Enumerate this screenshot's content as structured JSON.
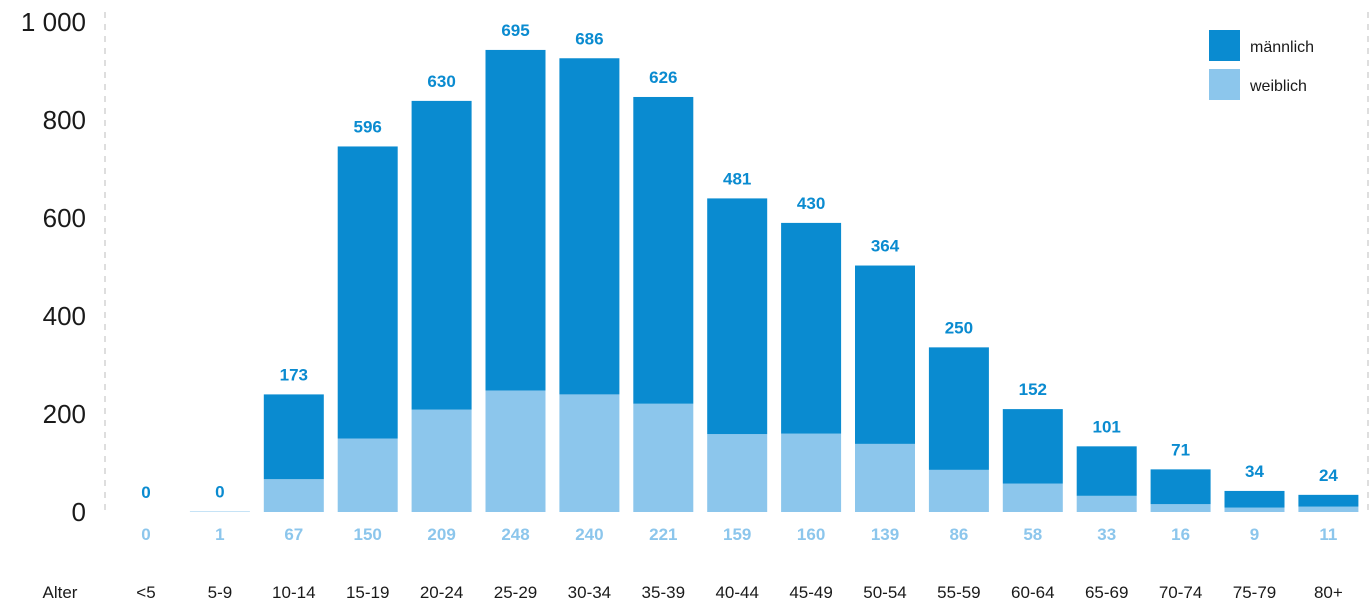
{
  "chart_data": {
    "type": "bar",
    "stacked": true,
    "x_axis_label": "Alter",
    "categories": [
      "<5",
      "5-9",
      "10-14",
      "15-19",
      "20-24",
      "25-29",
      "30-34",
      "35-39",
      "40-44",
      "45-49",
      "50-54",
      "55-59",
      "60-64",
      "65-69",
      "70-74",
      "75-79",
      "80+"
    ],
    "series": [
      {
        "name": "weiblich",
        "color": "#8cc6ec",
        "values": [
          0,
          1,
          67,
          150,
          209,
          248,
          240,
          221,
          159,
          160,
          139,
          86,
          58,
          33,
          16,
          9,
          11
        ]
      },
      {
        "name": "männlich",
        "color": "#0a8bd0",
        "values": [
          0,
          0,
          173,
          596,
          630,
          695,
          686,
          626,
          481,
          430,
          364,
          250,
          152,
          101,
          71,
          34,
          24
        ]
      }
    ],
    "ylim": [
      0,
      1000
    ],
    "yticks": [
      0,
      200,
      400,
      600,
      800,
      1000
    ],
    "ytick_labels": [
      "0",
      "200",
      "400",
      "600",
      "800",
      "1 000"
    ],
    "grid": false,
    "legend": {
      "position": "top-right",
      "entries": [
        "männlich",
        "weiblich"
      ]
    }
  }
}
